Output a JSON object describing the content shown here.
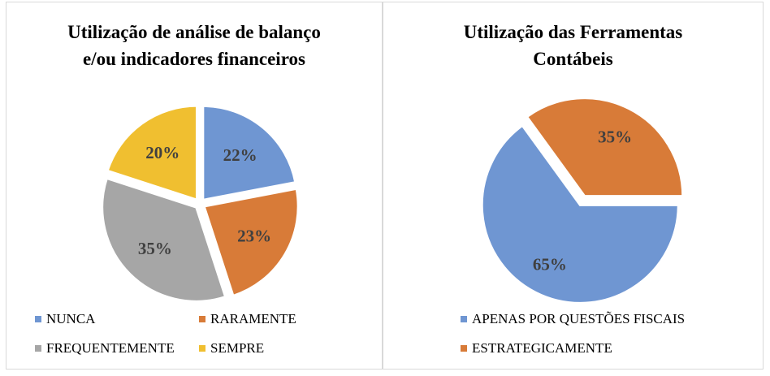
{
  "chart_data": [
    {
      "type": "pie",
      "title": "Utilização de análise de balanço e/ou indicadores financeiros",
      "title_lines": [
        "Utilização de análise de balanço",
        "e/ou indicadores financeiros"
      ],
      "categories": [
        "NUNCA",
        "RARAMENTE",
        "FREQUENTEMENTE",
        "SEMPRE"
      ],
      "values": [
        22,
        23,
        35,
        20
      ],
      "labels": [
        "22%",
        "23%",
        "35%",
        "20%"
      ],
      "colors": [
        "#6f96d2",
        "#d87b38",
        "#a6a6a6",
        "#f0bf30"
      ],
      "start_angle_deg": 90,
      "legend_position": "bottom"
    },
    {
      "type": "pie",
      "title": "Utilização das Ferramentas Contábeis",
      "title_lines": [
        "Utilização das Ferramentas",
        "Contábeis"
      ],
      "categories": [
        "APENAS POR QUESTÕES FISCAIS",
        "ESTRATEGICAMENTE"
      ],
      "values": [
        65,
        35
      ],
      "labels": [
        "65%",
        "35%"
      ],
      "colors": [
        "#6f96d2",
        "#d87b38"
      ],
      "start_angle_deg": 0,
      "legend_position": "bottom"
    }
  ]
}
